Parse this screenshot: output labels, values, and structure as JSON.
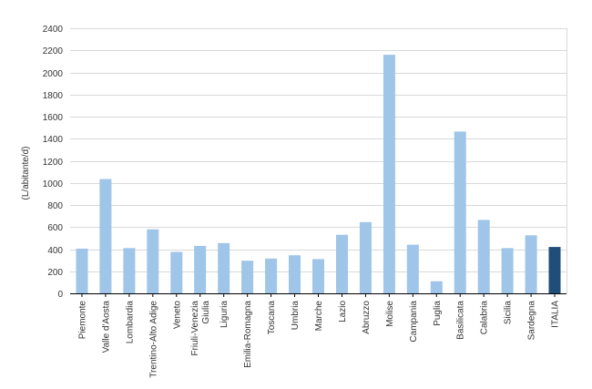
{
  "chart_data": {
    "type": "bar",
    "title": "",
    "xlabel": "",
    "ylabel": "(L/abitante/d)",
    "ylim": [
      0,
      2400
    ],
    "y_ticks": [
      0,
      200,
      400,
      600,
      800,
      1000,
      1200,
      1400,
      1600,
      1800,
      2000,
      2200,
      2400
    ],
    "grid": true,
    "legend": "none",
    "categories": [
      "Piemonte",
      "Valle d'Aosta",
      "Lombardia",
      "Trentino-Alto Adige",
      "Veneto",
      "Friuli-Venezia Giulia",
      "Liguria",
      "Emilia-Romagna",
      "Toscana",
      "Umbria",
      "Marche",
      "Lazio",
      "Abruzzo",
      "Molise",
      "Campania",
      "Puglia",
      "Basilicata",
      "Calabria",
      "Sicilia",
      "Sardegna",
      "ITALIA"
    ],
    "category_lines": [
      [
        "Piemonte"
      ],
      [
        "Valle d'Aosta"
      ],
      [
        "Lombardia"
      ],
      [
        "Trentino-Alto Adige"
      ],
      [
        "Veneto"
      ],
      [
        "Friuli-Venezia",
        "Giulia"
      ],
      [
        "Liguria"
      ],
      [
        "Emilia-Romagna"
      ],
      [
        "Toscana"
      ],
      [
        "Umbria"
      ],
      [
        "Marche"
      ],
      [
        "Lazio"
      ],
      [
        "Abruzzo"
      ],
      [
        "Molise"
      ],
      [
        "Campania"
      ],
      [
        "Puglia"
      ],
      [
        "Basilicata"
      ],
      [
        "Calabria"
      ],
      [
        "Sicilia"
      ],
      [
        "Sardegna"
      ],
      [
        "ITALIA"
      ]
    ],
    "values": [
      405,
      1035,
      410,
      580,
      375,
      430,
      455,
      295,
      315,
      345,
      310,
      530,
      645,
      2160,
      440,
      110,
      1465,
      665,
      410,
      525,
      420
    ],
    "colors": {
      "bar": "#9fc5e8",
      "highlight": "#1f4e79",
      "grid": "#d9d9d9",
      "axis": "#000000"
    },
    "highlight_category": "ITALIA"
  }
}
